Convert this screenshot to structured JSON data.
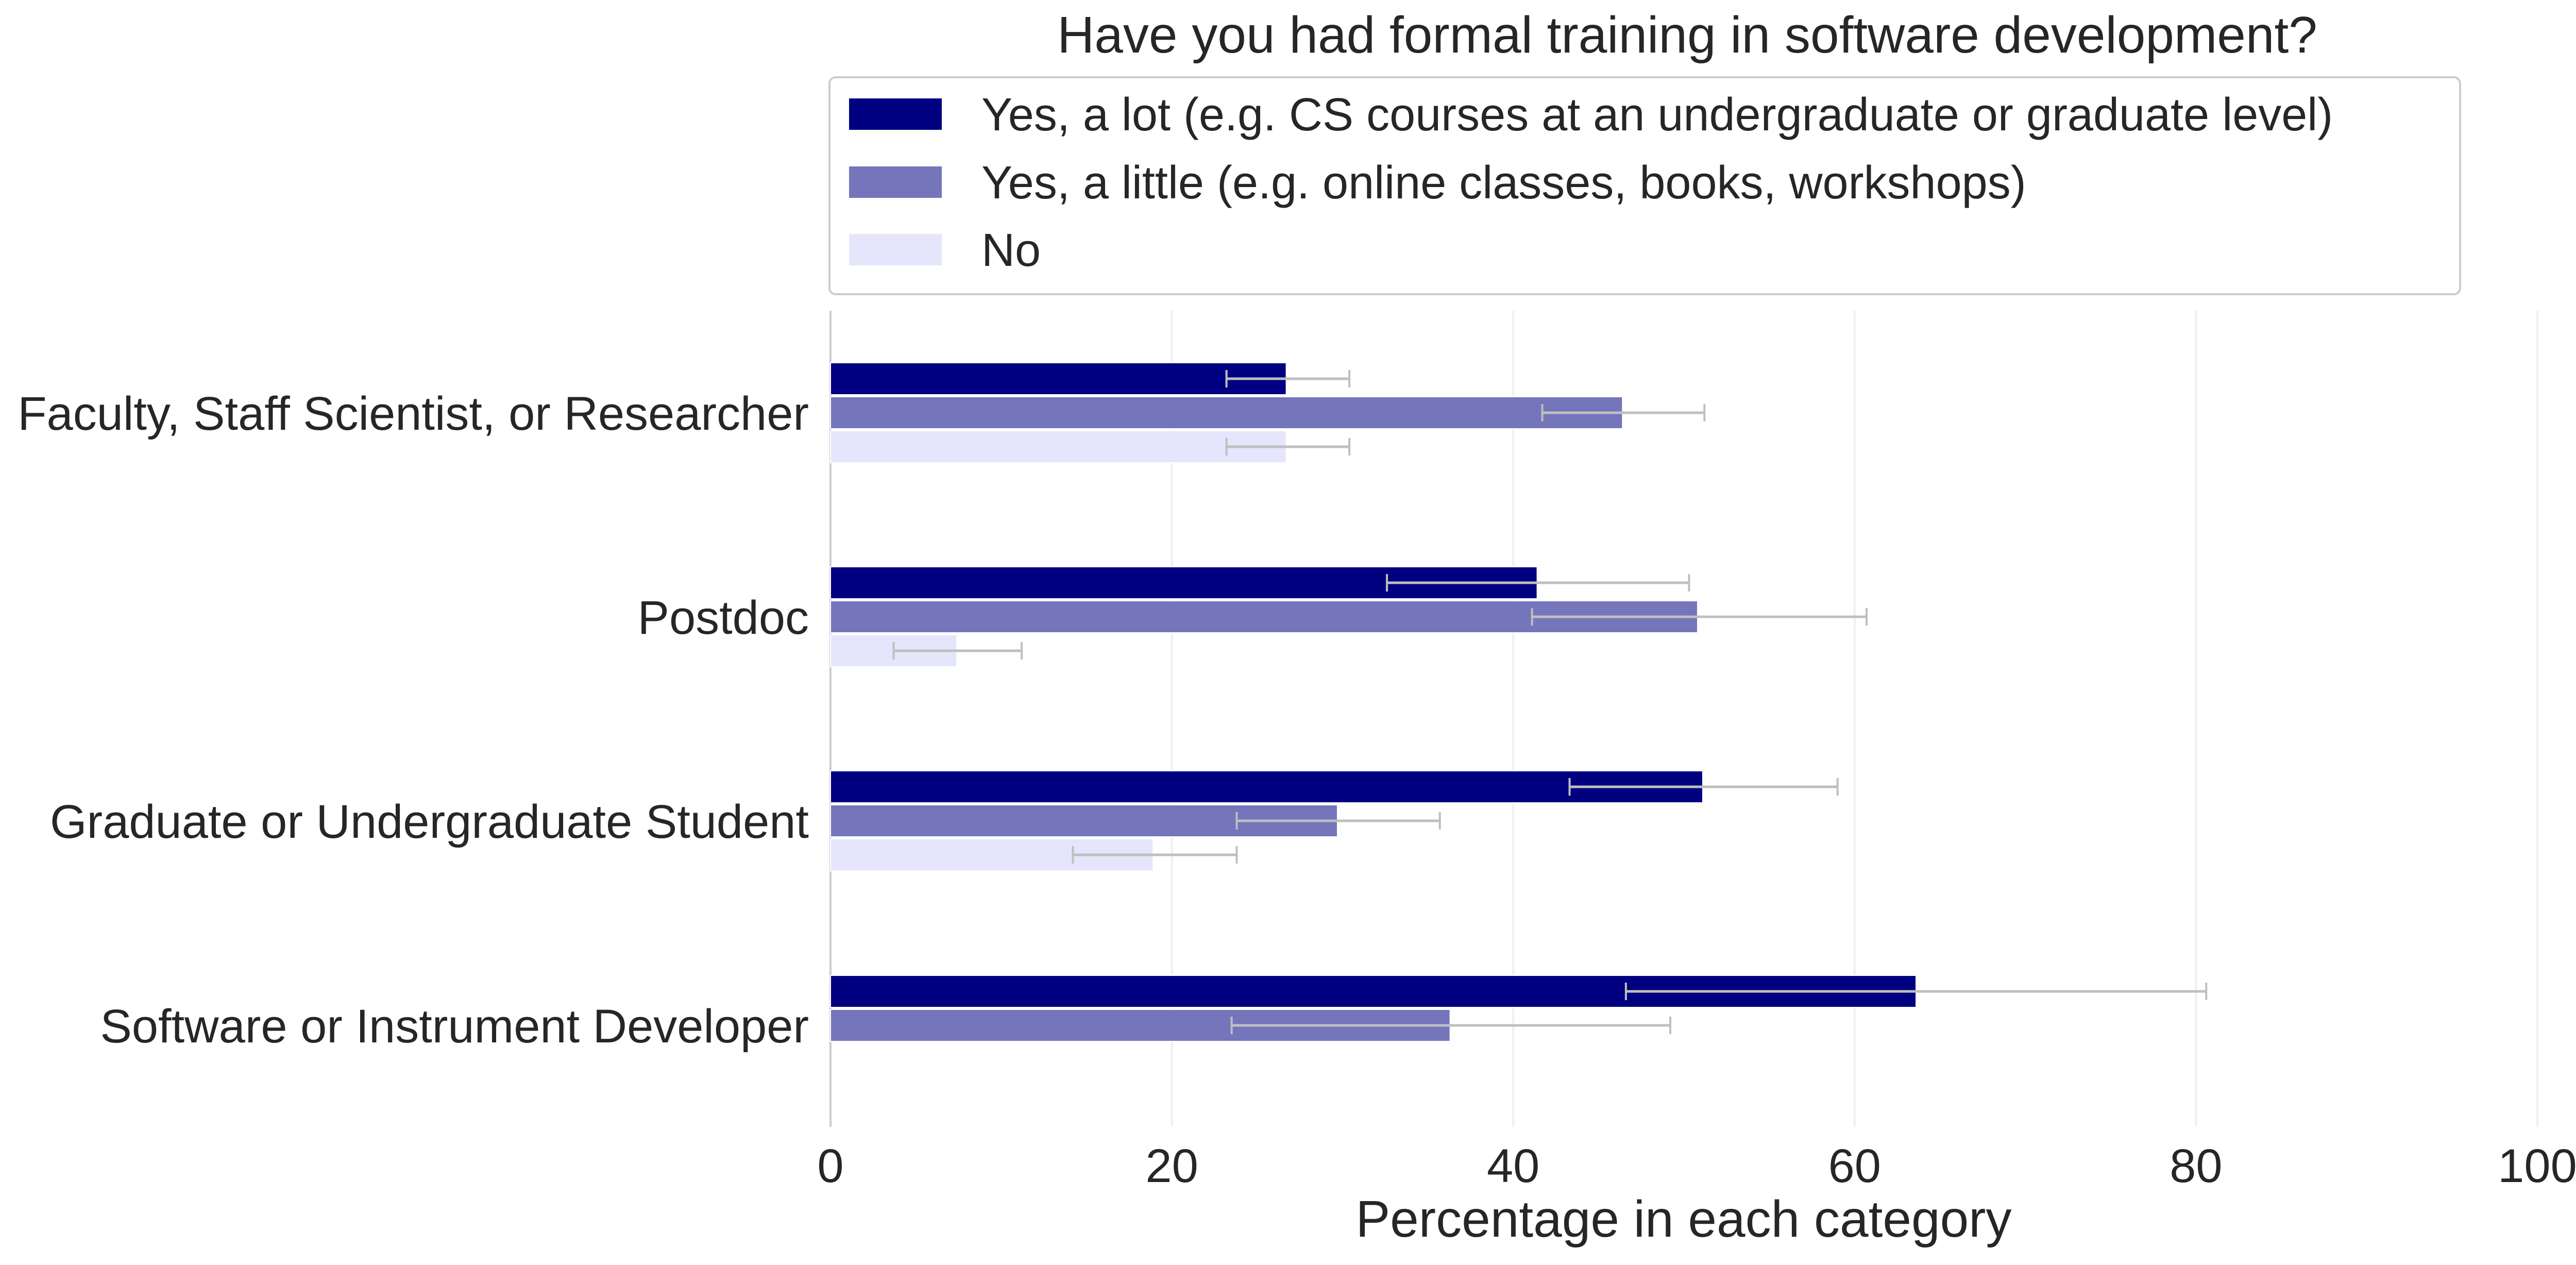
{
  "chart_data": {
    "type": "bar",
    "orientation": "horizontal",
    "title": "Have you had formal training in software development?",
    "xlabel": "Percentage in each category",
    "ylabel": "",
    "xlim": [
      0,
      100
    ],
    "xticks": [
      0,
      20,
      40,
      60,
      80,
      100
    ],
    "xtick_labels": [
      "0",
      "20",
      "40",
      "60",
      "80",
      "100"
    ],
    "grid": {
      "x": true,
      "y": false
    },
    "legend_position": "top, above plot",
    "categories": [
      "Faculty, Staff Scientist, or Researcher",
      "Postdoc",
      "Graduate or Undergraduate Student",
      "Software or Instrument Developer"
    ],
    "series": [
      {
        "name": "Yes, a lot (e.g. CS courses at an undergraduate or graduate level)",
        "color": "#000080",
        "values": [
          26.7,
          41.4,
          51.1,
          63.6
        ],
        "error_low": [
          23.2,
          32.6,
          43.3,
          46.6
        ],
        "error_high": [
          30.4,
          50.3,
          59.0,
          80.6
        ]
      },
      {
        "name": "Yes, a little (e.g. online classes, books, workshops)",
        "color": "#7575bc",
        "values": [
          46.4,
          50.8,
          29.7,
          36.3
        ],
        "error_low": [
          41.7,
          41.1,
          23.8,
          23.5
        ],
        "error_high": [
          51.2,
          60.7,
          35.7,
          49.2
        ]
      },
      {
        "name": "No",
        "color": "#e5e5fc",
        "values": [
          26.7,
          7.4,
          18.9,
          0
        ],
        "error_low": [
          23.2,
          3.7,
          14.2,
          null
        ],
        "error_high": [
          30.4,
          11.2,
          23.8,
          null
        ]
      }
    ],
    "error_bar_color": "#bfbfbf"
  }
}
